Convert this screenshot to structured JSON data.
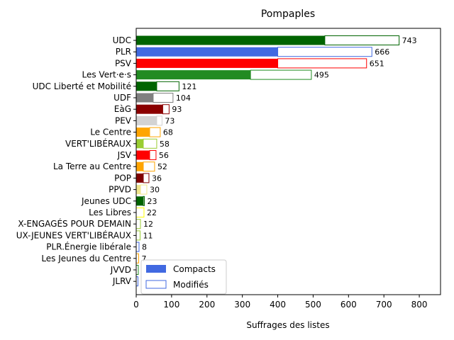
{
  "chart_data": {
    "type": "bar",
    "orientation": "horizontal",
    "stacked": true,
    "title": "Pompaples",
    "xlabel": "Suffrages des listes",
    "ylabel": "",
    "xlim": [
      0,
      860
    ],
    "xticks": [
      0,
      100,
      200,
      300,
      400,
      500,
      600,
      700,
      800
    ],
    "grid": false,
    "legend_placement": "lower-left",
    "series": [
      {
        "name": "Compacts",
        "fill": "solid"
      },
      {
        "name": "Modifiés",
        "fill": "outline"
      }
    ],
    "categories": [
      "UDC",
      "PLR",
      "PSV",
      "Les Vert·e·s",
      "UDC Liberté et Mobilité",
      "UDF",
      "EàG",
      "PEV",
      "Le Centre",
      "VERT'LIBÉRAUX",
      "JSV",
      "La Terre au Centre",
      "POP",
      "PPVD",
      "Jeunes UDC",
      "Les Libres",
      "X-ENGAGÉS POUR DEMAIN",
      "UX-JEUNES VERT'LIBÉRAUX",
      "PLR.Énergie libérale",
      "Les Jeunes du Centre",
      "JVVD",
      "JLRV"
    ],
    "compacts": [
      533,
      400,
      400,
      323,
      58,
      48,
      75,
      58,
      38,
      20,
      38,
      20,
      20,
      12,
      20,
      0,
      0,
      0,
      0,
      0,
      0,
      0
    ],
    "totals": [
      743,
      666,
      651,
      495,
      121,
      104,
      93,
      73,
      68,
      58,
      56,
      52,
      36,
      30,
      23,
      22,
      12,
      11,
      8,
      7,
      6,
      5
    ],
    "labels": [
      "743",
      "666",
      "651",
      "495",
      "121",
      "104",
      "93",
      "73",
      "68",
      "58",
      "56",
      "52",
      "36",
      "30",
      "23",
      "22",
      "12",
      "11",
      "8",
      "7",
      "",
      ""
    ],
    "colors": [
      "#006400",
      "#4169e1",
      "#ff0000",
      "#228b22",
      "#006400",
      "#808080",
      "#8b0000",
      "#d3d3d3",
      "#ffa500",
      "#9acd32",
      "#ff0000",
      "#ffa500",
      "#800000",
      "#f0e68c",
      "#006400",
      "#ffff00",
      "#9acd32",
      "#9acd32",
      "#4169e1",
      "#ffa500",
      "#228b22",
      "#4169e1"
    ]
  }
}
